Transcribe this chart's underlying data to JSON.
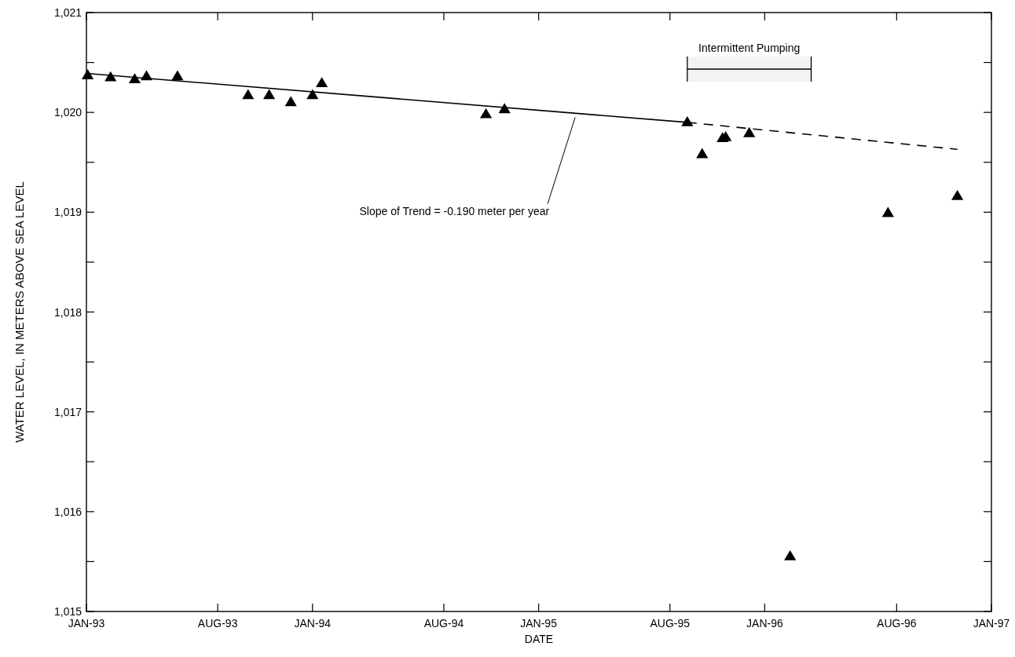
{
  "chart_data": {
    "type": "scatter",
    "xlabel": "DATE",
    "ylabel": "WATER LEVEL, IN METERS ABOVE SEA LEVEL",
    "xlim": [
      "1993-01-01",
      "1997-01-01"
    ],
    "xticks": [
      {
        "value": "1993-01-01",
        "label": "JAN-93"
      },
      {
        "value": "1993-08-01",
        "label": "AUG-93"
      },
      {
        "value": "1994-01-01",
        "label": "JAN-94"
      },
      {
        "value": "1994-08-01",
        "label": "AUG-94"
      },
      {
        "value": "1995-01-01",
        "label": "JAN-95"
      },
      {
        "value": "1995-08-01",
        "label": "AUG-95"
      },
      {
        "value": "1996-01-01",
        "label": "JAN-96"
      },
      {
        "value": "1996-08-01",
        "label": "AUG-96"
      },
      {
        "value": "1997-01-01",
        "label": "JAN-97"
      }
    ],
    "ylim": [
      1015,
      1021
    ],
    "yticks": [
      {
        "value": 1015,
        "label": "1,015"
      },
      {
        "value": 1015.5,
        "label": null
      },
      {
        "value": 1016,
        "label": "1,016"
      },
      {
        "value": 1016.5,
        "label": null
      },
      {
        "value": 1017,
        "label": "1,017"
      },
      {
        "value": 1017.5,
        "label": null
      },
      {
        "value": 1018,
        "label": "1,018"
      },
      {
        "value": 1018.5,
        "label": null
      },
      {
        "value": 1019,
        "label": "1,019"
      },
      {
        "value": 1019.5,
        "label": null
      },
      {
        "value": 1020,
        "label": "1,020"
      },
      {
        "value": 1020.5,
        "label": null
      },
      {
        "value": 1021,
        "label": "1,021"
      }
    ],
    "grid": false,
    "series": [
      {
        "color": "#000000",
        "marker": "triangle",
        "x": [
          "1993-01-03",
          "1993-02-09",
          "1993-03-20",
          "1993-04-08",
          "1993-05-28",
          "1993-09-19",
          "1993-10-23",
          "1993-11-27",
          "1994-01-01",
          "1994-01-16",
          "1994-10-08",
          "1994-11-07",
          "1995-08-29",
          "1995-09-22",
          "1995-10-25",
          "1995-10-30",
          "1995-12-07",
          "1996-02-11",
          "1996-07-18",
          "1996-11-07"
        ],
        "values": [
          1020.37,
          1020.35,
          1020.33,
          1020.36,
          1020.36,
          1020.17,
          1020.17,
          1020.1,
          1020.17,
          1020.29,
          1019.98,
          1020.03,
          1019.9,
          1019.58,
          1019.74,
          1019.75,
          1019.79,
          1015.55,
          1018.99,
          1019.16
        ]
      },
      {
        "type": "line",
        "color": "#000000",
        "line_style": "solid",
        "marker": "none",
        "x": [
          "1993-01-01",
          "1995-08-29"
        ],
        "values": [
          1020.39,
          1019.9
        ]
      },
      {
        "type": "line",
        "color": "#000000",
        "line_style": "dashed",
        "marker": "none",
        "x": [
          "1995-08-29",
          "1996-11-07"
        ],
        "values": [
          1019.9,
          1019.63
        ]
      }
    ],
    "bands": [
      {
        "axis": "x",
        "from": "1995-08-29",
        "to": "1996-03-16",
        "label": "Intermittent Pumping"
      }
    ],
    "annotations": [
      {
        "text": "Slope of Trend = -0.190 meter per year",
        "x": "1995-03-01",
        "y": 1019.95
      }
    ]
  }
}
